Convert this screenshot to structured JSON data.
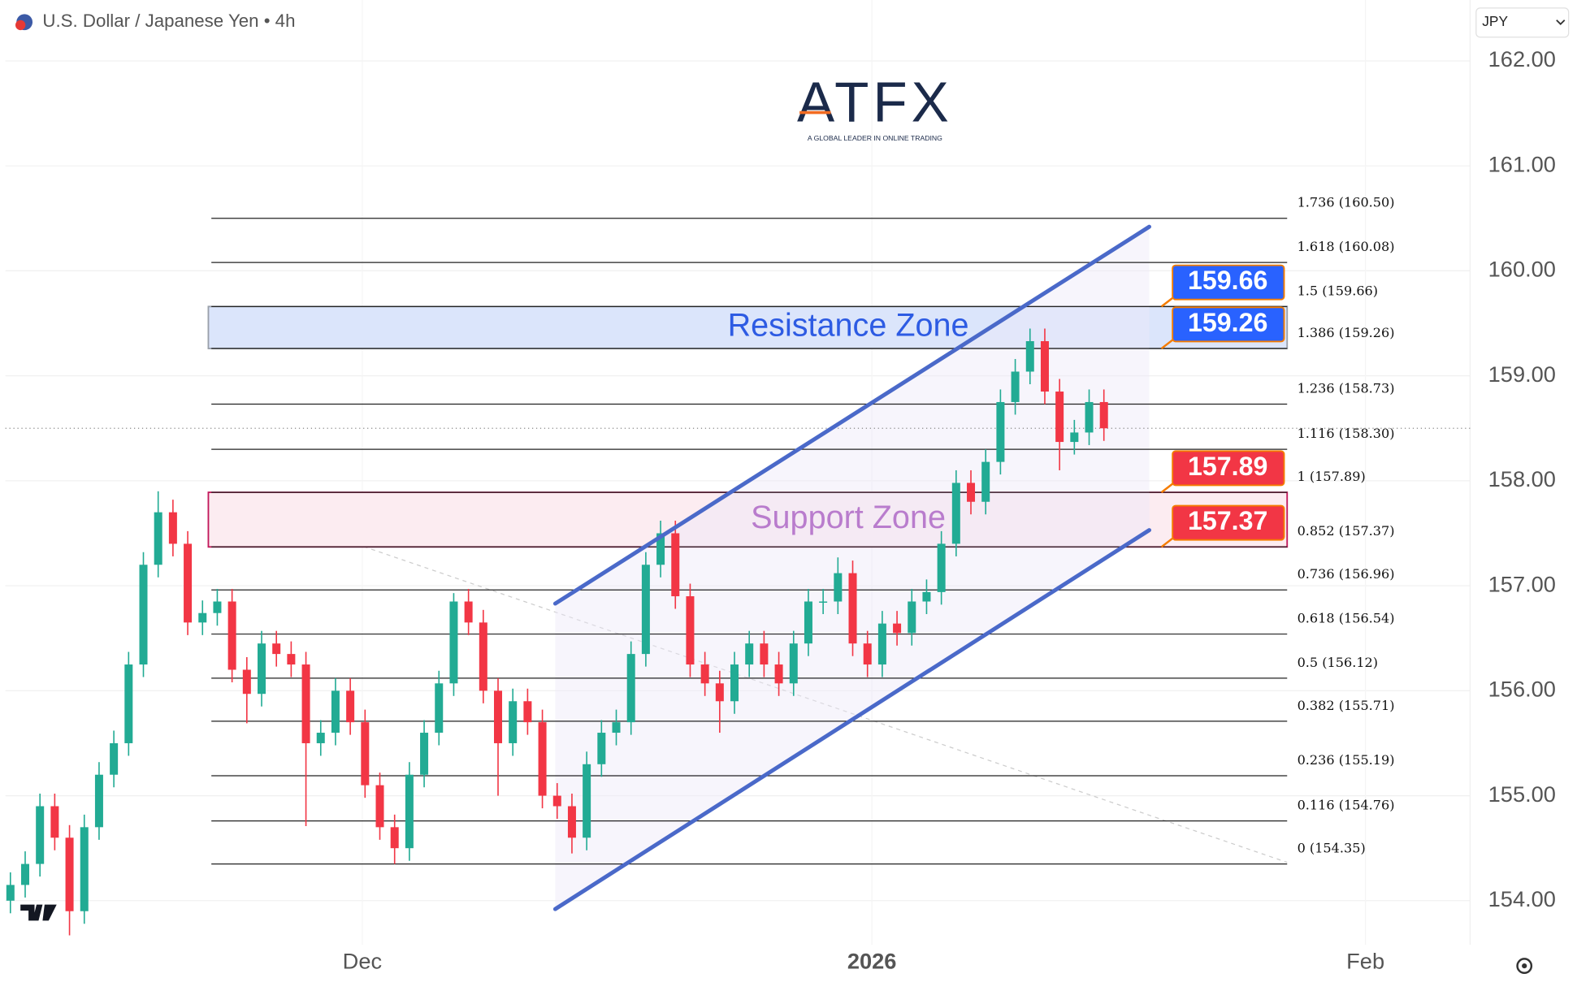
{
  "chart_data": {
    "type": "candlestick",
    "title": "U.S. Dollar / Japanese Yen • 4h",
    "currency": "JPY",
    "logo": "ATFX",
    "logo_tagline": "A GLOBAL LEADER IN ONLINE TRADING",
    "up_color": "#22ab94",
    "down_color": "#f23645",
    "open": [
      154.0,
      154.15,
      154.35,
      154.9,
      154.6,
      153.9,
      154.7,
      155.2,
      155.5,
      156.25,
      157.2,
      157.7,
      157.4,
      156.65,
      156.74,
      156.85,
      156.2,
      155.97,
      156.45,
      156.35,
      156.25,
      155.5,
      155.6,
      156.0,
      155.7,
      155.1,
      154.7,
      154.5,
      155.2,
      155.6,
      156.07,
      156.85,
      156.65,
      156.0,
      155.5,
      155.9,
      155.7,
      155.0,
      154.9,
      154.6,
      155.3,
      155.6,
      155.7,
      156.35,
      157.2,
      157.5,
      156.9,
      156.25,
      156.07,
      155.9,
      156.25,
      156.45,
      156.25,
      156.07,
      156.45,
      156.85,
      156.85,
      157.12,
      156.45,
      156.25,
      156.64,
      156.55,
      156.85,
      156.94,
      157.4,
      157.98,
      157.8,
      158.18,
      158.75,
      159.04,
      159.33,
      158.85,
      158.37,
      158.46,
      158.75
    ],
    "high": [
      154.27,
      154.47,
      155.02,
      155.02,
      154.72,
      154.82,
      155.32,
      155.62,
      156.37,
      157.32,
      157.9,
      157.82,
      157.52,
      156.86,
      156.97,
      156.97,
      156.32,
      156.57,
      156.57,
      156.47,
      156.37,
      155.72,
      156.12,
      156.12,
      155.82,
      155.22,
      154.82,
      155.32,
      155.72,
      156.19,
      156.93,
      156.97,
      156.77,
      156.12,
      156.02,
      156.02,
      155.82,
      155.12,
      155.02,
      155.42,
      155.72,
      155.82,
      156.47,
      157.32,
      157.62,
      157.62,
      157.02,
      156.37,
      156.19,
      156.37,
      156.57,
      156.57,
      156.37,
      156.57,
      156.97,
      156.97,
      157.27,
      157.24,
      156.57,
      156.76,
      156.76,
      156.97,
      157.06,
      157.52,
      158.1,
      158.1,
      158.3,
      158.87,
      159.16,
      159.45,
      159.45,
      158.97,
      158.58,
      158.87,
      158.87
    ],
    "low": [
      153.88,
      154.03,
      154.23,
      154.48,
      153.67,
      153.78,
      154.58,
      155.08,
      155.38,
      156.13,
      157.08,
      157.28,
      156.53,
      156.53,
      156.62,
      156.08,
      155.69,
      155.85,
      156.23,
      156.13,
      154.71,
      155.38,
      155.48,
      155.58,
      154.98,
      154.58,
      154.35,
      154.38,
      155.08,
      155.48,
      155.95,
      156.53,
      155.88,
      155.0,
      155.38,
      155.58,
      154.88,
      154.78,
      154.45,
      154.48,
      155.18,
      155.48,
      155.58,
      156.23,
      157.08,
      156.78,
      156.13,
      155.95,
      155.6,
      155.78,
      156.13,
      156.13,
      155.95,
      155.95,
      156.33,
      156.73,
      156.73,
      156.33,
      156.13,
      156.13,
      156.43,
      156.43,
      156.73,
      156.82,
      157.28,
      157.68,
      157.68,
      158.06,
      158.63,
      158.92,
      158.73,
      158.1,
      158.25,
      158.34,
      158.38
    ],
    "close": [
      154.15,
      154.35,
      154.9,
      154.6,
      153.9,
      154.7,
      155.2,
      155.5,
      156.25,
      157.2,
      157.7,
      157.4,
      156.65,
      156.74,
      156.85,
      156.2,
      155.97,
      156.45,
      156.35,
      156.25,
      155.5,
      155.6,
      156.0,
      155.7,
      155.1,
      154.7,
      154.5,
      155.2,
      155.6,
      156.07,
      156.85,
      156.65,
      156.0,
      155.5,
      155.9,
      155.7,
      155.0,
      154.9,
      154.6,
      155.3,
      155.6,
      155.7,
      156.35,
      157.2,
      157.5,
      156.9,
      156.25,
      156.07,
      155.9,
      156.25,
      156.45,
      156.25,
      156.07,
      156.45,
      156.85,
      156.85,
      157.12,
      156.45,
      156.25,
      156.64,
      156.55,
      156.85,
      156.94,
      157.4,
      157.98,
      157.8,
      158.18,
      158.75,
      159.04,
      159.33,
      158.85,
      158.37,
      158.46,
      158.75,
      158.5
    ],
    "xlim": [
      -0.34,
      98.78
    ],
    "xticks": [
      {
        "value": 23.81,
        "label": "Dec"
      },
      {
        "value": 58.3,
        "label": "2026"
      },
      {
        "value": 91.7,
        "label": "Feb"
      }
    ],
    "ylim": [
      153.58,
      162.58
    ],
    "yticks": [
      {
        "value": 154,
        "label": "154.00"
      },
      {
        "value": 155,
        "label": "155.00"
      },
      {
        "value": 156,
        "label": "156.00"
      },
      {
        "value": 157,
        "label": "157.00"
      },
      {
        "value": 158,
        "label": "158.00"
      },
      {
        "value": 159,
        "label": "159.00"
      },
      {
        "value": 160,
        "label": "160.00"
      },
      {
        "value": 161,
        "label": "161.00"
      },
      {
        "value": 162,
        "label": "162.00"
      }
    ],
    "fib_x": [
      13.6,
      86.4
    ],
    "fib_levels": [
      {
        "value": 160.5,
        "label": "1.736 (160.50)"
      },
      {
        "value": 160.08,
        "label": "1.618 (160.08)"
      },
      {
        "value": 159.66,
        "label": "1.5 (159.66)"
      },
      {
        "value": 159.26,
        "label": "1.386 (159.26)"
      },
      {
        "value": 158.73,
        "label": "1.236 (158.73)"
      },
      {
        "value": 158.3,
        "label": "1.116 (158.30)"
      },
      {
        "value": 157.89,
        "label": "1 (157.89)"
      },
      {
        "value": 157.37,
        "label": "0.852 (157.37)"
      },
      {
        "value": 156.96,
        "label": "0.736 (156.96)"
      },
      {
        "value": 156.54,
        "label": "0.618 (156.54)"
      },
      {
        "value": 156.12,
        "label": "0.5 (156.12)"
      },
      {
        "value": 155.71,
        "label": "0.382 (155.71)"
      },
      {
        "value": 155.19,
        "label": "0.236 (155.19)"
      },
      {
        "value": 154.76,
        "label": "0.116 (154.76)"
      },
      {
        "value": 154.35,
        "label": "0 (154.35)"
      }
    ],
    "zones": [
      {
        "name": "Resistance Zone",
        "low": 159.26,
        "high": 159.66,
        "fill": "#dbe5fb",
        "stroke": "#9aa0aa",
        "text_color": "#2d5be3"
      },
      {
        "name": "Support Zone",
        "low": 157.37,
        "high": 157.89,
        "fill": "#fcecf1",
        "stroke": "#c2185b",
        "text_color": "#8e24aa"
      }
    ],
    "price_tags": [
      {
        "value": 159.66,
        "color": "#2962ff"
      },
      {
        "value": 159.26,
        "color": "#2962ff"
      },
      {
        "value": 157.89,
        "color": "#f23645"
      },
      {
        "value": 157.37,
        "color": "#f23645"
      }
    ],
    "channel": {
      "color": "#4a69c9",
      "upper": {
        "x": [
          36.87,
          77.07
        ],
        "y": [
          156.83,
          160.42
        ]
      },
      "lower": {
        "x": [
          36.87,
          77.07
        ],
        "y": [
          153.92,
          157.53
        ]
      }
    }
  }
}
